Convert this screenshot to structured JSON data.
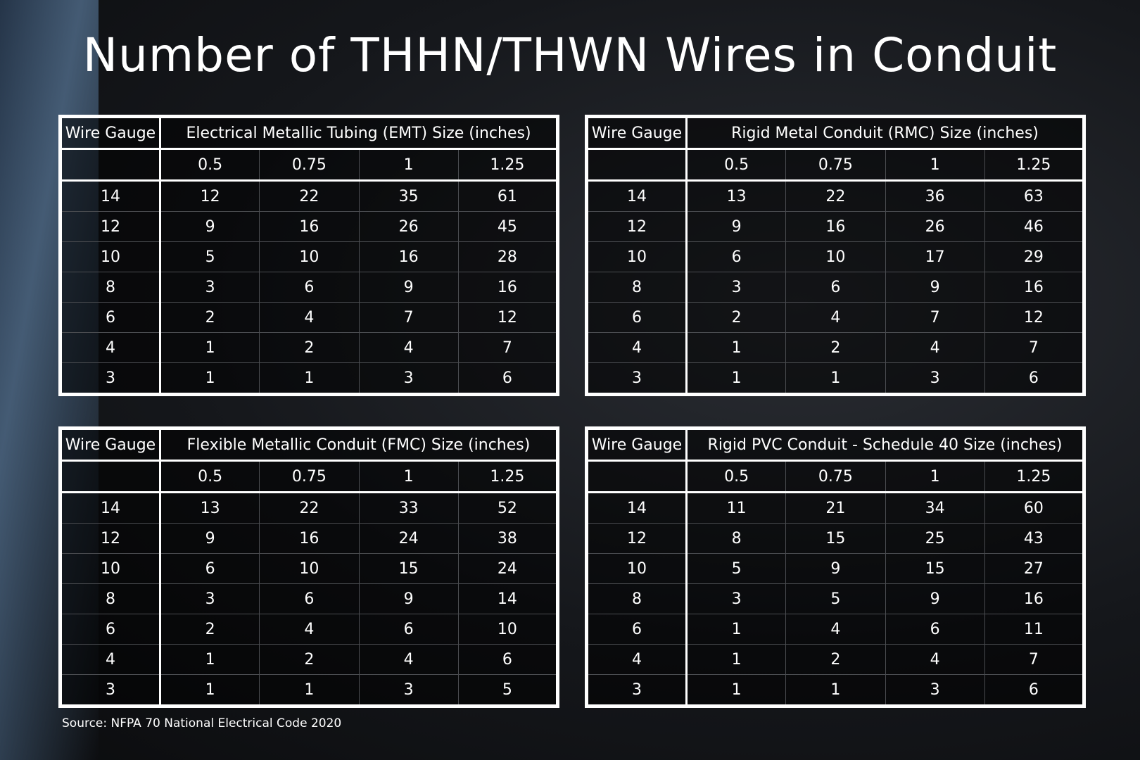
{
  "title": "Number of THHN/THWN Wires in Conduit",
  "tables": [
    {
      "gauge_header": "Wire Gauge",
      "title": "Electrical Metallic Tubing (EMT) Size (inches)",
      "sizes": [
        0.5,
        0.75,
        1,
        1.25
      ],
      "rows": [
        [
          14,
          12,
          22,
          35,
          61
        ],
        [
          12,
          9,
          16,
          26,
          45
        ],
        [
          10,
          5,
          10,
          16,
          28
        ],
        [
          8,
          3,
          6,
          9,
          16
        ],
        [
          6,
          2,
          4,
          7,
          12
        ],
        [
          4,
          1,
          2,
          4,
          7
        ],
        [
          3,
          1,
          1,
          3,
          6
        ]
      ]
    },
    {
      "gauge_header": "Wire Gauge",
      "title": "Rigid Metal Conduit (RMC) Size (inches)",
      "sizes": [
        0.5,
        0.75,
        1,
        1.25
      ],
      "rows": [
        [
          14,
          13,
          22,
          36,
          63
        ],
        [
          12,
          9,
          16,
          26,
          46
        ],
        [
          10,
          6,
          10,
          17,
          29
        ],
        [
          8,
          3,
          6,
          9,
          16
        ],
        [
          6,
          2,
          4,
          7,
          12
        ],
        [
          4,
          1,
          2,
          4,
          7
        ],
        [
          3,
          1,
          1,
          3,
          6
        ]
      ]
    },
    {
      "gauge_header": "Wire Gauge",
      "title": "Flexible Metallic Conduit (FMC) Size (inches)",
      "sizes": [
        0.5,
        0.75,
        1,
        1.25
      ],
      "rows": [
        [
          14,
          13,
          22,
          33,
          52
        ],
        [
          12,
          9,
          16,
          24,
          38
        ],
        [
          10,
          6,
          10,
          15,
          24
        ],
        [
          8,
          3,
          6,
          9,
          14
        ],
        [
          6,
          2,
          4,
          6,
          10
        ],
        [
          4,
          1,
          2,
          4,
          6
        ],
        [
          3,
          1,
          1,
          3,
          5
        ]
      ]
    },
    {
      "gauge_header": "Wire Gauge",
      "title": "Rigid PVC Conduit - Schedule 40 Size (inches)",
      "sizes": [
        0.5,
        0.75,
        1,
        1.25
      ],
      "rows": [
        [
          14,
          11,
          21,
          34,
          60
        ],
        [
          12,
          8,
          15,
          25,
          43
        ],
        [
          10,
          5,
          9,
          15,
          27
        ],
        [
          8,
          3,
          5,
          9,
          16
        ],
        [
          6,
          1,
          4,
          6,
          11
        ],
        [
          4,
          1,
          2,
          4,
          7
        ],
        [
          3,
          1,
          1,
          3,
          6
        ]
      ]
    }
  ],
  "source": "Source: NFPA 70 National Electrical Code 2020"
}
